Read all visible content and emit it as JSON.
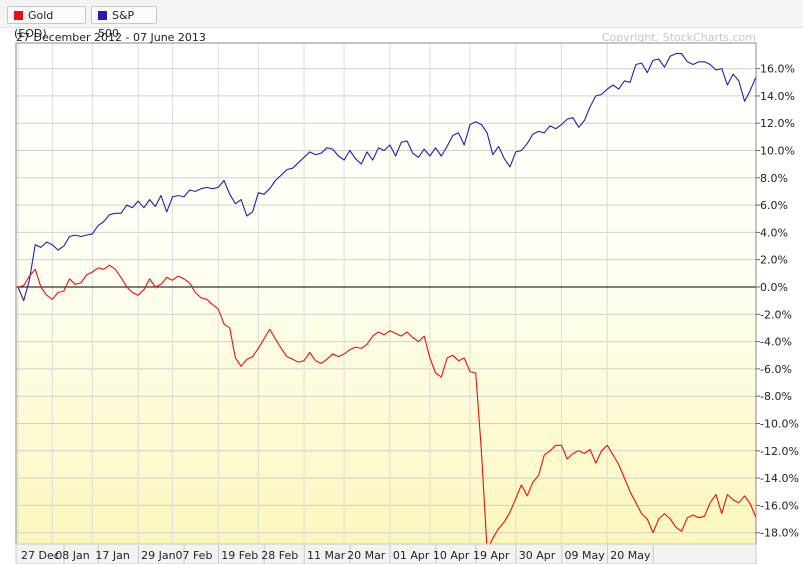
{
  "legend": [
    {
      "label": "Gold (EOD)",
      "color": "#e81010"
    },
    {
      "label": "S&P 500",
      "color": "#2a1ab0"
    }
  ],
  "date_range": "27 December 2012 - 07 June 2013",
  "copyright": "Copyright, StockCharts.com",
  "chart_data": {
    "type": "line",
    "y_unit": "%",
    "ylim": [
      -19.5,
      17.8
    ],
    "y_ticks": [
      "16.0%",
      "14.0%",
      "12.0%",
      "10.0%",
      "8.0%",
      "6.0%",
      "4.0%",
      "2.0%",
      "0.0%",
      "-2.0%",
      "-4.0%",
      "-6.0%",
      "-8.0%",
      "-10.0%",
      "-12.0%",
      "-14.0%",
      "-16.0%",
      "-18.0%"
    ],
    "y_tick_values": [
      16,
      14,
      12,
      10,
      8,
      6,
      4,
      2,
      0,
      -2,
      -4,
      -6,
      -8,
      -10,
      -12,
      -14,
      -16,
      -18
    ],
    "x_labels": [
      "27 Dec",
      "08 Jan",
      "17 Jan",
      "29 Jan",
      "07 Feb",
      "19 Feb",
      "28 Feb",
      "11 Mar",
      "20 Mar",
      "01 Apr",
      "10 Apr",
      "19 Apr",
      "30 Apr",
      "09 May",
      "20 May"
    ],
    "x_label_index": [
      0,
      6,
      13,
      21,
      27,
      35,
      42,
      50,
      57,
      65,
      72,
      79,
      87,
      95,
      103
    ],
    "series": [
      {
        "name": "S&P 500",
        "color": "#2a1ab0",
        "values": [
          0,
          -1,
          0.5,
          3.1,
          2.9,
          3.3,
          3.1,
          2.7,
          3.0,
          3.7,
          3.8,
          3.7,
          3.8,
          3.9,
          4.5,
          4.8,
          5.3,
          5.4,
          5.4,
          6.0,
          5.8,
          6.3,
          5.8,
          6.4,
          5.9,
          6.7,
          5.5,
          6.6,
          6.7,
          6.6,
          7.1,
          7.0,
          7.2,
          7.3,
          7.2,
          7.3,
          7.8,
          6.8,
          6.1,
          6.4,
          5.2,
          5.5,
          6.9,
          6.8,
          7.2,
          7.8,
          8.2,
          8.6,
          8.7,
          9.1,
          9.5,
          9.9,
          9.7,
          9.8,
          10.2,
          10.1,
          9.6,
          9.3,
          10.0,
          9.4,
          9.0,
          9.9,
          9.3,
          10.2,
          10.0,
          10.4,
          9.6,
          10.6,
          10.7,
          9.8,
          9.5,
          10.1,
          9.6,
          10.2,
          9.6,
          10.3,
          11.1,
          11.3,
          10.4,
          11.9,
          12.1,
          11.9,
          11.3,
          9.7,
          10.3,
          9.4,
          8.8,
          9.9,
          10.0,
          10.5,
          11.2,
          11.4,
          11.3,
          11.8,
          11.6,
          11.9,
          12.3,
          12.4,
          11.7,
          12.2,
          13.2,
          14.0,
          14.1,
          14.5,
          14.8,
          14.5,
          15.1,
          15.0,
          16.3,
          16.4,
          15.7,
          16.6,
          16.7,
          16.1,
          16.9,
          17.1,
          17.1,
          16.5,
          16.3,
          16.5,
          16.5,
          16.3,
          15.9,
          16.0,
          14.8,
          15.6,
          15.1,
          13.6,
          14.4,
          15.4
        ]
      },
      {
        "name": "Gold (EOD)",
        "color": "#e81010",
        "values": [
          0,
          0.1,
          0.8,
          1.3,
          0,
          -0.6,
          -0.9,
          -0.4,
          -0.3,
          0.6,
          0.2,
          0.3,
          0.9,
          1.1,
          1.4,
          1.3,
          1.6,
          1.3,
          0.7,
          0,
          -0.4,
          -0.6,
          -0.2,
          0.6,
          0,
          0.2,
          0.7,
          0.5,
          0.8,
          0.6,
          0.3,
          -0.4,
          -0.8,
          -0.9,
          -1.3,
          -1.6,
          -2.7,
          -3.0,
          -5.2,
          -5.8,
          -5.3,
          -5.1,
          -4.5,
          -3.8,
          -3.1,
          -3.8,
          -4.5,
          -5.1,
          -5.3,
          -5.5,
          -5.4,
          -4.8,
          -5.4,
          -5.6,
          -5.3,
          -4.9,
          -5.1,
          -4.9,
          -4.6,
          -4.4,
          -4.5,
          -4.2,
          -3.6,
          -3.3,
          -3.5,
          -3.2,
          -3.4,
          -3.6,
          -3.3,
          -3.7,
          -4.0,
          -3.6,
          -5.2,
          -6.3,
          -6.6,
          -5.2,
          -5.0,
          -5.4,
          -5.2,
          -6.2,
          -6.3,
          -12.0,
          -19.3,
          -18.4,
          -17.7,
          -17.2,
          -16.5,
          -15.5,
          -14.5,
          -15.3,
          -14.3,
          -13.8,
          -12.3,
          -12.0,
          -11.6,
          -11.6,
          -12.6,
          -12.2,
          -12.0,
          -12.2,
          -11.9,
          -12.9,
          -12.0,
          -11.6,
          -12.3,
          -13.0,
          -14.0,
          -15.0,
          -15.8,
          -16.6,
          -17.0,
          -18.0,
          -17.0,
          -16.6,
          -17.0,
          -17.6,
          -17.9,
          -16.9,
          -16.7,
          -16.9,
          -16.8,
          -15.8,
          -15.2,
          -16.6,
          -15.2,
          -15.6,
          -15.8,
          -15.3,
          -15.9,
          -16.9
        ]
      }
    ],
    "zero_line": true,
    "grid": true
  }
}
